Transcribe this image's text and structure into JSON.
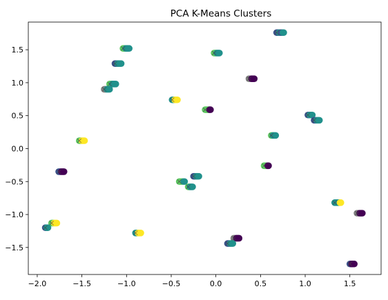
{
  "chart_data": {
    "type": "scatter",
    "title": "PCA K-Means Clusters",
    "xlabel": "",
    "ylabel": "",
    "xlim": [
      -2.1,
      1.85
    ],
    "ylim": [
      -1.91,
      1.92
    ],
    "grid": false,
    "legend": "none",
    "x_ticks": [
      -2.0,
      -1.5,
      -1.0,
      -0.5,
      0.0,
      0.5,
      1.0,
      1.5
    ],
    "x_tick_labels": [
      "−2.0",
      "−1.5",
      "−1.0",
      "−0.5",
      "0.0",
      "0.5",
      "1.0",
      "1.5"
    ],
    "y_ticks": [
      -1.5,
      -1.0,
      -0.5,
      0.0,
      0.5,
      1.0,
      1.5
    ],
    "y_tick_labels": [
      "−1.5",
      "−1.0",
      "−0.5",
      "0.0",
      "0.5",
      "1.0",
      "1.5"
    ],
    "cluster_colors": [
      "#440154",
      "#3b528b",
      "#21918c",
      "#5ec962",
      "#fde725",
      "#808080"
    ],
    "groups": [
      {
        "x_start": 0.68,
        "x_end": 0.76,
        "y": 1.76,
        "colors": [
          1,
          2,
          1,
          2
        ]
      },
      {
        "x_start": -1.04,
        "x_end": -0.97,
        "y": 1.52,
        "colors": [
          3,
          2,
          2
        ]
      },
      {
        "x_start": -0.02,
        "x_end": 0.04,
        "y": 1.45,
        "colors": [
          3,
          2,
          2
        ]
      },
      {
        "x_start": -1.13,
        "x_end": -1.06,
        "y": 1.29,
        "colors": [
          1,
          2,
          2
        ]
      },
      {
        "x_start": 0.37,
        "x_end": 0.43,
        "y": 1.06,
        "colors": [
          5,
          0,
          0
        ]
      },
      {
        "x_start": -1.19,
        "x_end": -1.12,
        "y": 0.98,
        "colors": [
          3,
          2,
          2
        ]
      },
      {
        "x_start": -1.25,
        "x_end": -1.19,
        "y": 0.9,
        "colors": [
          5,
          2,
          2
        ]
      },
      {
        "x_start": -0.49,
        "x_end": -0.43,
        "y": 0.74,
        "colors": [
          2,
          4,
          4
        ]
      },
      {
        "x_start": -0.12,
        "x_end": -0.06,
        "y": 0.59,
        "colors": [
          3,
          3,
          0
        ]
      },
      {
        "x_start": 1.03,
        "x_end": 1.08,
        "y": 0.51,
        "colors": [
          1,
          2,
          2
        ]
      },
      {
        "x_start": 1.1,
        "x_end": 1.16,
        "y": 0.43,
        "colors": [
          1,
          2,
          2
        ]
      },
      {
        "x_start": 0.62,
        "x_end": 0.67,
        "y": 0.2,
        "colors": [
          3,
          2,
          2
        ]
      },
      {
        "x_start": -1.53,
        "x_end": -1.47,
        "y": 0.12,
        "colors": [
          3,
          4,
          4
        ]
      },
      {
        "x_start": -1.76,
        "x_end": -1.7,
        "y": -0.35,
        "colors": [
          1,
          0,
          0
        ]
      },
      {
        "x_start": -0.25,
        "x_end": -0.19,
        "y": -0.42,
        "colors": [
          1,
          2,
          2
        ]
      },
      {
        "x_start": -0.41,
        "x_end": -0.35,
        "y": -0.5,
        "colors": [
          3,
          3,
          2
        ]
      },
      {
        "x_start": -0.31,
        "x_end": -0.26,
        "y": -0.58,
        "colors": [
          3,
          2,
          2
        ]
      },
      {
        "x_start": 0.54,
        "x_end": 0.59,
        "y": -0.26,
        "colors": [
          3,
          3,
          0
        ]
      },
      {
        "x_start": 1.33,
        "x_end": 1.4,
        "y": -0.82,
        "colors": [
          2,
          2,
          4
        ]
      },
      {
        "x_start": 1.58,
        "x_end": 1.64,
        "y": -0.98,
        "colors": [
          5,
          0,
          0
        ]
      },
      {
        "x_start": -1.84,
        "x_end": -1.78,
        "y": -1.13,
        "colors": [
          3,
          4,
          4
        ]
      },
      {
        "x_start": -1.91,
        "x_end": -1.88,
        "y": -1.2,
        "colors": [
          1,
          2,
          2
        ]
      },
      {
        "x_start": -0.9,
        "x_end": -0.84,
        "y": -1.28,
        "colors": [
          2,
          4,
          4
        ]
      },
      {
        "x_start": 0.2,
        "x_end": 0.26,
        "y": -1.36,
        "colors": [
          5,
          0,
          0
        ]
      },
      {
        "x_start": 0.13,
        "x_end": 0.19,
        "y": -1.44,
        "colors": [
          1,
          2,
          2
        ]
      },
      {
        "x_start": 1.5,
        "x_end": 1.55,
        "y": -1.75,
        "colors": [
          1,
          0,
          0
        ]
      }
    ]
  }
}
